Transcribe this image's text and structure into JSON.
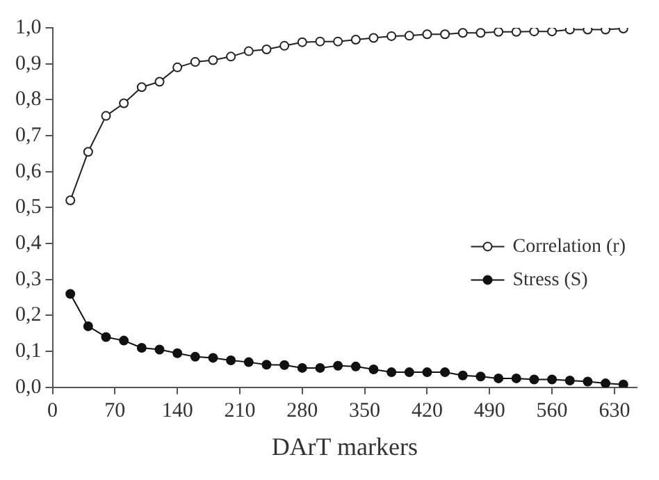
{
  "chart_data": {
    "type": "line",
    "xlabel": "DArT markers",
    "x": [
      20,
      40,
      60,
      80,
      100,
      120,
      140,
      160,
      180,
      200,
      220,
      240,
      260,
      280,
      300,
      320,
      340,
      360,
      380,
      400,
      420,
      440,
      460,
      480,
      500,
      520,
      540,
      560,
      580,
      600,
      620,
      640
    ],
    "series": [
      {
        "name": "Correlation (r)",
        "color": "#222222",
        "marker": "circle",
        "values": [
          0.52,
          0.655,
          0.755,
          0.79,
          0.835,
          0.85,
          0.89,
          0.905,
          0.91,
          0.92,
          0.935,
          0.94,
          0.95,
          0.96,
          0.962,
          0.962,
          0.967,
          0.972,
          0.977,
          0.978,
          0.982,
          0.982,
          0.986,
          0.986,
          0.989,
          0.989,
          0.99,
          0.99,
          0.995,
          0.995,
          0.995,
          0.998
        ]
      },
      {
        "name": "Stress (S)",
        "color": "#111111",
        "marker": "circle",
        "values": [
          0.26,
          0.17,
          0.14,
          0.13,
          0.11,
          0.105,
          0.095,
          0.085,
          0.082,
          0.075,
          0.07,
          0.063,
          0.062,
          0.054,
          0.054,
          0.06,
          0.058,
          0.05,
          0.042,
          0.042,
          0.042,
          0.042,
          0.033,
          0.03,
          0.025,
          0.025,
          0.022,
          0.022,
          0.019,
          0.016,
          0.011,
          0.008
        ]
      }
    ],
    "xlim": [
      0,
      655
    ],
    "xticks": [
      0,
      70,
      140,
      210,
      280,
      350,
      420,
      490,
      560,
      630
    ],
    "ylim": [
      0,
      1.0
    ],
    "yticks": [
      {
        "value": 0,
        "label": "0,0"
      },
      {
        "value": 0.1,
        "label": "0,1"
      },
      {
        "value": 0.2,
        "label": "0,2"
      },
      {
        "value": 0.3,
        "label": "0,3"
      },
      {
        "value": 0.4,
        "label": "0,4"
      },
      {
        "value": 0.5,
        "label": "0,5"
      },
      {
        "value": 0.6,
        "label": "0,6"
      },
      {
        "value": 0.7,
        "label": "0,7"
      },
      {
        "value": 0.8,
        "label": "0,8"
      },
      {
        "value": 0.9,
        "label": "0,9"
      },
      {
        "value": 1.0,
        "label": "1,0"
      }
    ],
    "grid": false,
    "legend": "right",
    "line_style": "solid"
  }
}
